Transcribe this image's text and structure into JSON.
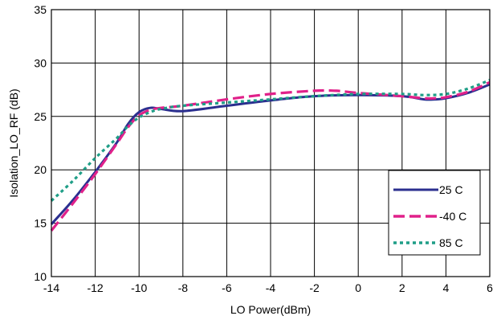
{
  "chart_data": {
    "type": "line",
    "title": "",
    "xlabel": "LO Power(dBm)",
    "ylabel": "Isolation_LO_RF (dB)",
    "xlim": [
      -14,
      6
    ],
    "ylim": [
      10,
      35
    ],
    "xticks": [
      -14,
      -12,
      -10,
      -8,
      -6,
      -4,
      -2,
      0,
      2,
      4,
      6
    ],
    "yticks": [
      10,
      15,
      20,
      25,
      30,
      35
    ],
    "xtick_labels": [
      "-14",
      "-12",
      "-10",
      "-8",
      "-6",
      "-4",
      "-2",
      "0",
      "2",
      "4",
      "6"
    ],
    "ytick_labels": [
      "10",
      "15",
      "20",
      "25",
      "30",
      "35"
    ],
    "grid": true,
    "legend_position": "bottom-right",
    "series": [
      {
        "name": "25 C",
        "color": "#2b2f8f",
        "style": "solid",
        "x": [
          -14,
          -13,
          -12,
          -11,
          -10.5,
          -10,
          -9.5,
          -9,
          -8,
          -6,
          -4,
          -2,
          0,
          2,
          3,
          3.5,
          4,
          5,
          6
        ],
        "y": [
          14.9,
          17.2,
          19.8,
          22.6,
          24.3,
          25.4,
          25.8,
          25.7,
          25.5,
          26.0,
          26.5,
          26.9,
          27.0,
          26.9,
          26.6,
          26.6,
          26.7,
          27.2,
          28.0
        ]
      },
      {
        "name": "-40 C",
        "color": "#e0218a",
        "style": "dashed",
        "x": [
          -14,
          -13,
          -12,
          -11,
          -10.5,
          -10,
          -9.5,
          -9,
          -8,
          -6,
          -4,
          -2,
          -1,
          0,
          2,
          3,
          3.5,
          4,
          5,
          6
        ],
        "y": [
          14.3,
          16.9,
          19.6,
          22.5,
          24.0,
          25.1,
          25.6,
          25.8,
          26.0,
          26.6,
          27.1,
          27.4,
          27.4,
          27.2,
          26.9,
          26.7,
          26.7,
          26.8,
          27.3,
          28.2
        ]
      },
      {
        "name": "85 C",
        "color": "#1f9e87",
        "style": "dotted",
        "x": [
          -14,
          -13,
          -12,
          -11,
          -10.5,
          -10,
          -9.5,
          -9,
          -8,
          -6,
          -4,
          -2,
          0,
          2,
          3,
          4,
          5,
          6
        ],
        "y": [
          17.1,
          19.0,
          21.1,
          23.0,
          24.1,
          24.9,
          25.4,
          25.7,
          26.0,
          26.3,
          26.6,
          26.9,
          27.1,
          27.1,
          27.0,
          27.1,
          27.6,
          28.4
        ]
      }
    ]
  }
}
